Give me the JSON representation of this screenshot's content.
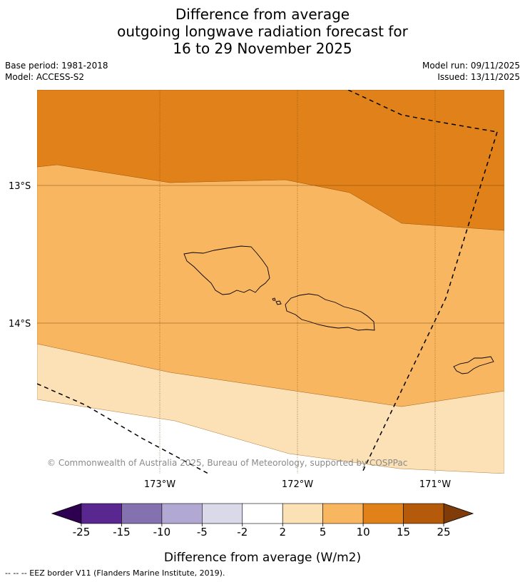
{
  "title": {
    "line1": "Difference from average",
    "line2": "outgoing longwave radiation forecast for",
    "line3": "16 to 29 November 2025"
  },
  "meta": {
    "base_period": "Base period: 1981-2018",
    "model": "Model: ACCESS-S2",
    "model_run": "Model run: 09/11/2025",
    "issued": "Issued: 13/11/2025"
  },
  "map": {
    "lat_labels": [
      "13°S",
      "14°S"
    ],
    "lon_labels": [
      "173°W",
      "172°W",
      "171°W"
    ],
    "copyright": "© Commonwealth of Australia 2025, Bureau of Meteorology, supported by COSPPac",
    "colors": {
      "band_10_15": "#e0811a",
      "band_5_10": "#f9b661",
      "band_2_5": "#fce0b6",
      "band_neutral": "#ffffff"
    }
  },
  "colorbar": {
    "ticks": [
      "-25",
      "-15",
      "-10",
      "-5",
      "-2",
      "2",
      "5",
      "10",
      "15",
      "25"
    ],
    "colors": [
      "#5a2690",
      "#8471b0",
      "#b1a8d3",
      "#d9d9ea",
      "#ffffff",
      "#fce0b6",
      "#f9b661",
      "#e0811a",
      "#b45a0a"
    ],
    "under_color": "#2d0050",
    "over_color": "#7f3b08",
    "label": "Difference from average (W/m2)"
  },
  "footnote": "--  --  -- EEZ border V11 (Flanders Marine Institute, 2019)."
}
